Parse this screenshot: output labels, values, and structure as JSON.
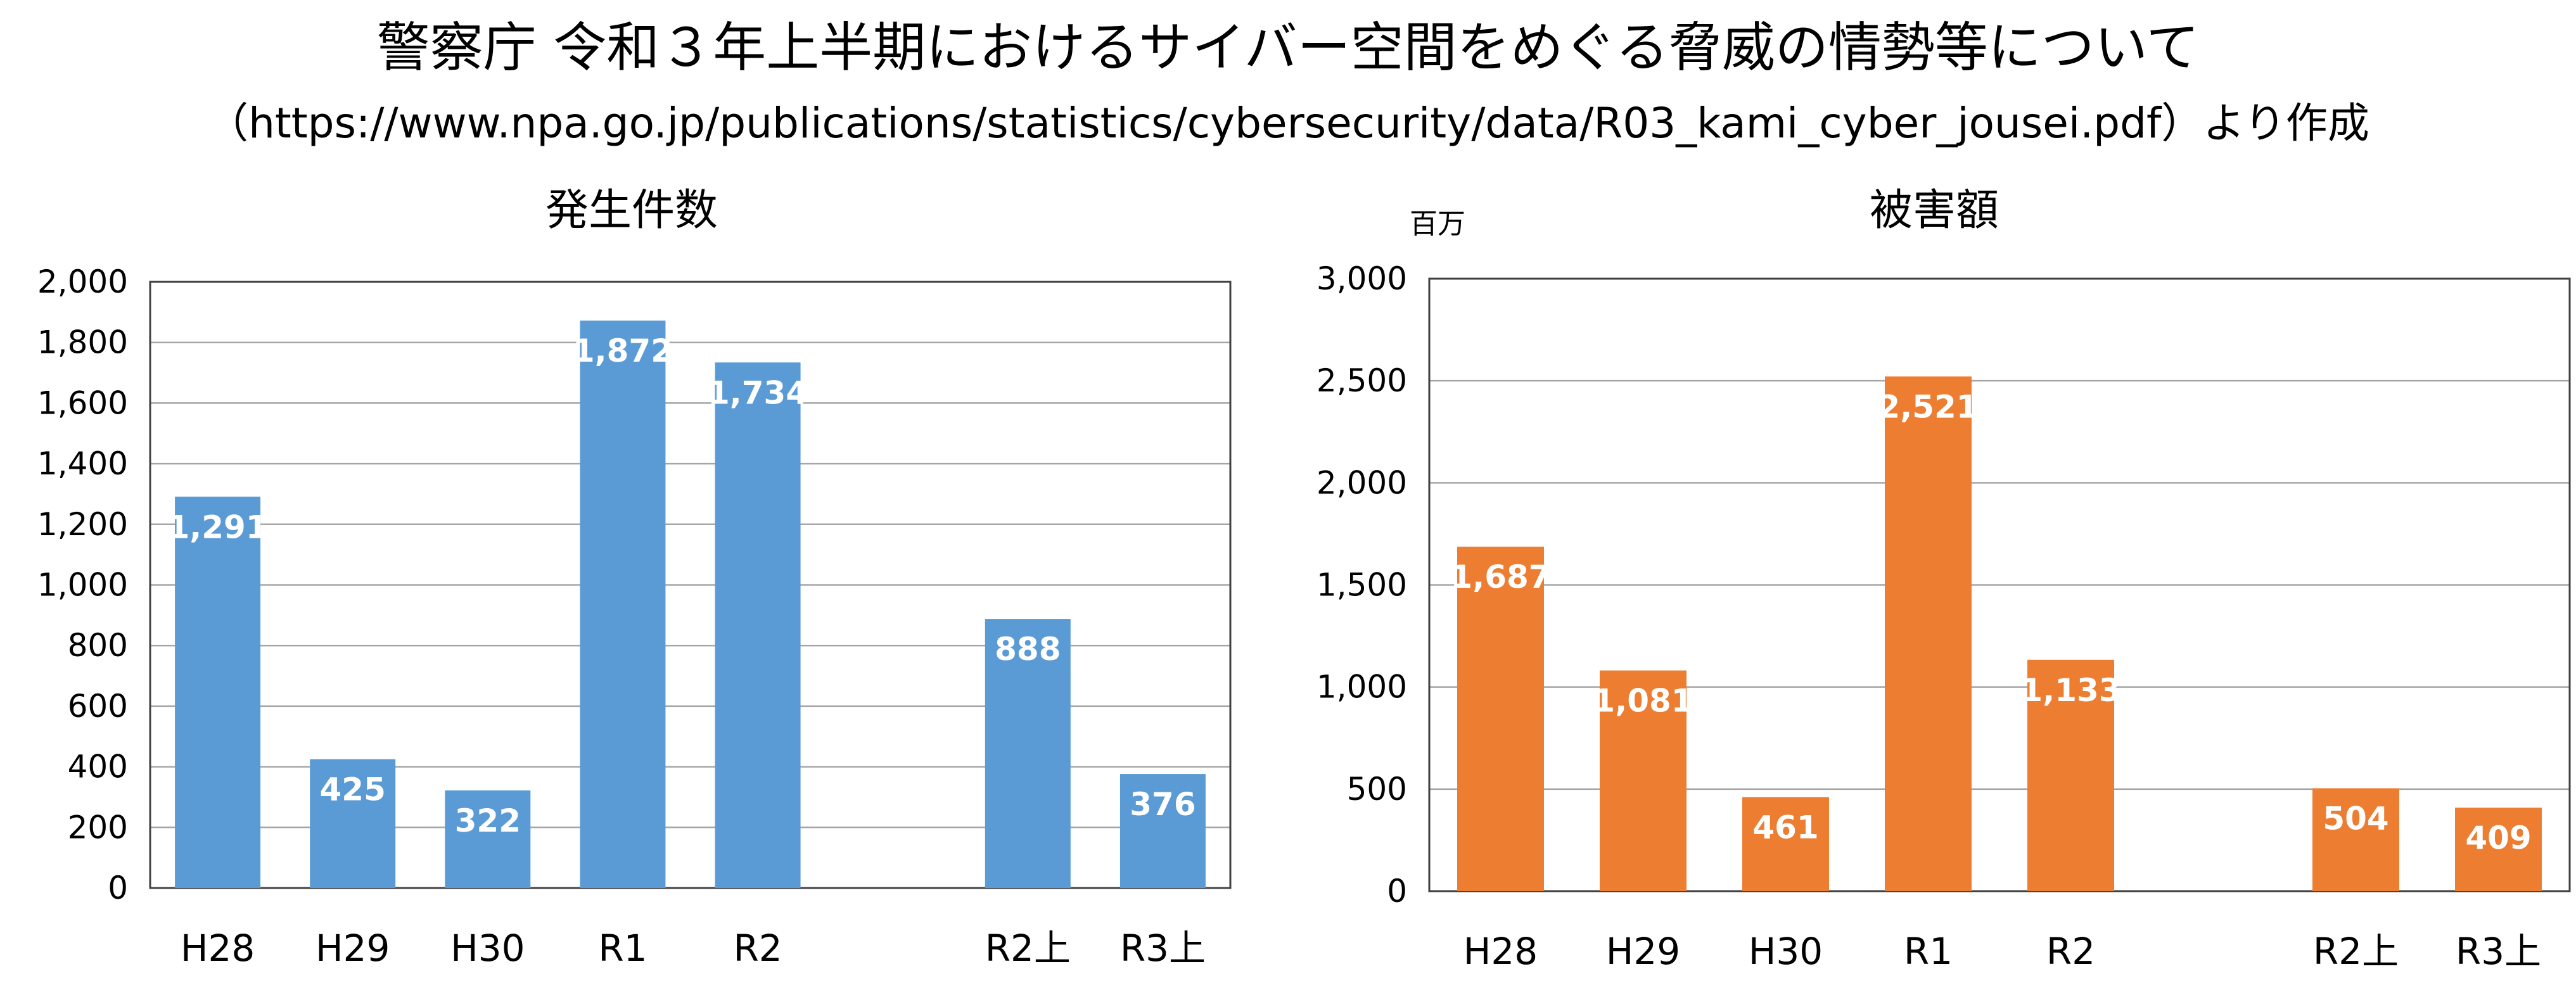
{
  "header": {
    "title": "警察庁 令和３年上半期におけるサイバー空間をめぐる脅威の情勢等について",
    "subtitle": "（https://www.npa.go.jp/publications/statistics/cybersecurity/data/R03_kami_cyber_jousei.pdf）より作成"
  },
  "chart_data": [
    {
      "type": "bar",
      "title": "発生件数",
      "unit_label": "",
      "categories": [
        "H28",
        "H29",
        "H30",
        "R1",
        "R2",
        "",
        "R2上",
        "R3上"
      ],
      "values": [
        1291,
        425,
        322,
        1872,
        1734,
        null,
        888,
        376
      ],
      "value_labels": [
        "1,291",
        "425",
        "322",
        "1,872",
        "1,734",
        "",
        "888",
        "376"
      ],
      "ylim": [
        0,
        2000
      ],
      "yticks": [
        0,
        200,
        400,
        600,
        800,
        1000,
        1200,
        1400,
        1600,
        1800,
        2000
      ],
      "ytick_labels": [
        "0",
        "200",
        "400",
        "600",
        "800",
        "1,000",
        "1,200",
        "1,400",
        "1,600",
        "1,800",
        "2,000"
      ],
      "color": "#5B9BD5",
      "grid": true
    },
    {
      "type": "bar",
      "title": "被害額",
      "unit_label": "百万",
      "categories": [
        "H28",
        "H29",
        "H30",
        "R1",
        "R2",
        "",
        "R2上",
        "R3上"
      ],
      "values": [
        1687,
        1081,
        461,
        2521,
        1133,
        null,
        504,
        409
      ],
      "value_labels": [
        "1,687",
        "1,081",
        "461",
        "2,521",
        "1,133",
        "",
        "504",
        "409"
      ],
      "ylim": [
        0,
        3000
      ],
      "yticks": [
        0,
        500,
        1000,
        1500,
        2000,
        2500,
        3000
      ],
      "ytick_labels": [
        "0",
        "500",
        "1,000",
        "1,500",
        "2,000",
        "2,500",
        "3,000"
      ],
      "color": "#ED7D31",
      "grid": true
    }
  ]
}
